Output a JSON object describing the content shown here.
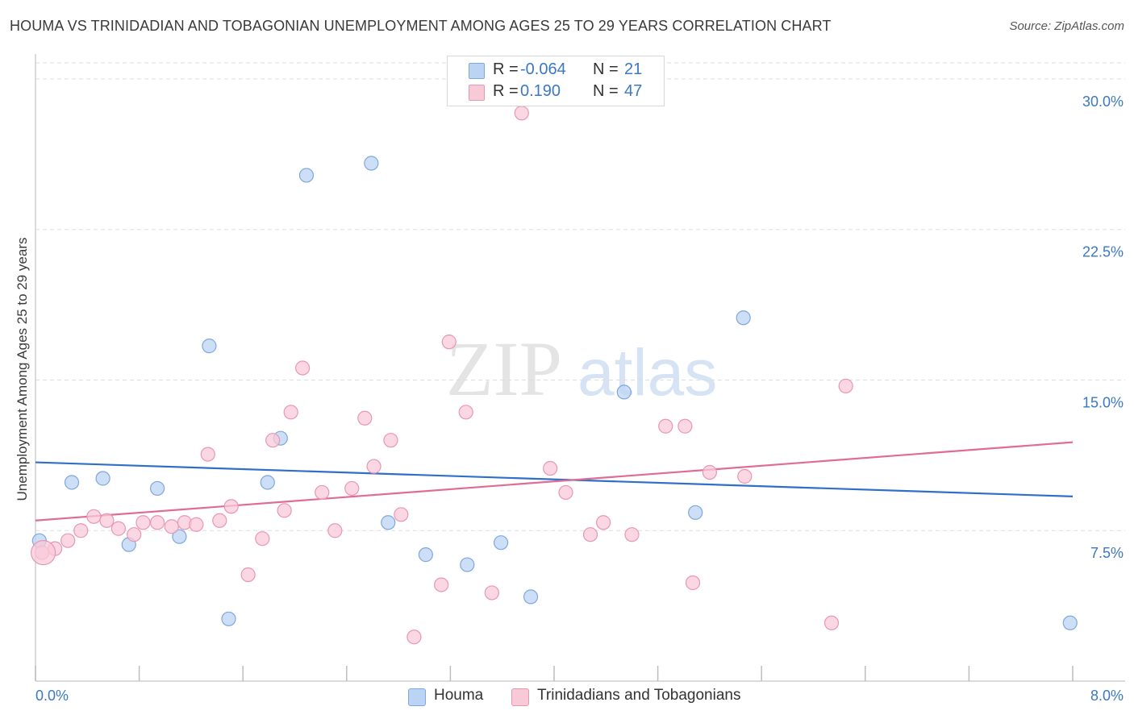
{
  "title": "HOUMA VS TRINIDADIAN AND TOBAGONIAN UNEMPLOYMENT AMONG AGES 25 TO 29 YEARS CORRELATION CHART",
  "source": "Source: ZipAtlas.com",
  "watermark": {
    "zip": "ZIP",
    "atlas": "atlas"
  },
  "legend": {
    "rows": [
      {
        "r_label": "R =",
        "r_value": "-0.064",
        "n_label": "N =",
        "n_value": "21"
      },
      {
        "r_label": "R =",
        "r_value": "0.190",
        "n_label": "N =",
        "n_value": "47"
      }
    ]
  },
  "bottom_legend": {
    "houma": "Houma",
    "trin": "Trinidadians and Tobagonians"
  },
  "colors": {
    "houma_fill": "#bcd4f4",
    "houma_stroke": "#7ea7dc",
    "houma_line": "#2f6fc8",
    "trin_fill": "#f8cad8",
    "trin_stroke": "#e897b2",
    "trin_line": "#e06c96",
    "tick_label": "#3b78c4",
    "grid": "#dddddd"
  },
  "chart_data": {
    "type": "scatter",
    "title": "HOUMA VS TRINIDADIAN AND TOBAGONIAN UNEMPLOYMENT AMONG AGES 25 TO 29 YEARS CORRELATION CHART",
    "xlabel": "",
    "ylabel": "Unemployment Among Ages 25 to 29 years",
    "xlim": [
      0,
      8
    ],
    "ylim": [
      0,
      30.8
    ],
    "x_tick_labels": [
      {
        "value": 0,
        "label": "0.0%"
      },
      {
        "value": 8,
        "label": "8.0%"
      }
    ],
    "y_ticks": [
      {
        "value": 7.5,
        "label": "7.5%"
      },
      {
        "value": 15,
        "label": "15.0%"
      },
      {
        "value": 22.5,
        "label": "22.5%"
      },
      {
        "value": 30,
        "label": "30.0%"
      }
    ],
    "x_minor_ticks": [
      0,
      0.8,
      1.6,
      2.4,
      3.2,
      4.0,
      4.8,
      5.6,
      6.4,
      7.2,
      8.0
    ],
    "grid": true,
    "legend_position": "top-center",
    "series": [
      {
        "name": "Houma",
        "color": "#bcd4f4",
        "points": [
          [
            0.03,
            7.0
          ],
          [
            0.28,
            9.9
          ],
          [
            0.52,
            10.1
          ],
          [
            0.72,
            6.8
          ],
          [
            0.94,
            9.6
          ],
          [
            1.11,
            7.2
          ],
          [
            1.34,
            16.7
          ],
          [
            1.49,
            3.1
          ],
          [
            1.79,
            9.9
          ],
          [
            1.89,
            12.1
          ],
          [
            2.09,
            25.2
          ],
          [
            2.59,
            25.8
          ],
          [
            2.72,
            7.9
          ],
          [
            3.01,
            6.3
          ],
          [
            3.33,
            5.8
          ],
          [
            3.59,
            6.9
          ],
          [
            3.82,
            4.2
          ],
          [
            4.54,
            14.4
          ],
          [
            5.09,
            8.4
          ],
          [
            5.46,
            18.1
          ],
          [
            7.98,
            2.9
          ]
        ],
        "trend": {
          "x": [
            0.0,
            8.0
          ],
          "y": [
            10.9,
            9.2
          ]
        }
      },
      {
        "name": "Trinidadians and Tobagonians",
        "color": "#f8cad8",
        "points": [
          [
            0.05,
            6.4
          ],
          [
            0.15,
            6.6
          ],
          [
            0.25,
            7.0
          ],
          [
            0.35,
            7.5
          ],
          [
            0.45,
            8.2
          ],
          [
            0.55,
            8.0
          ],
          [
            0.64,
            7.6
          ],
          [
            0.76,
            7.3
          ],
          [
            0.83,
            7.9
          ],
          [
            0.94,
            7.9
          ],
          [
            1.05,
            7.7
          ],
          [
            1.15,
            7.9
          ],
          [
            1.24,
            7.8
          ],
          [
            1.33,
            11.3
          ],
          [
            1.42,
            8.0
          ],
          [
            1.51,
            8.7
          ],
          [
            1.64,
            5.3
          ],
          [
            1.75,
            7.1
          ],
          [
            1.83,
            12.0
          ],
          [
            1.92,
            8.5
          ],
          [
            1.97,
            13.4
          ],
          [
            2.06,
            15.6
          ],
          [
            2.21,
            9.4
          ],
          [
            2.31,
            7.5
          ],
          [
            2.44,
            9.6
          ],
          [
            2.54,
            13.1
          ],
          [
            2.61,
            10.7
          ],
          [
            2.74,
            12.0
          ],
          [
            2.82,
            8.3
          ],
          [
            2.92,
            2.2
          ],
          [
            3.13,
            4.8
          ],
          [
            3.19,
            16.9
          ],
          [
            3.32,
            13.4
          ],
          [
            3.52,
            4.4
          ],
          [
            3.97,
            10.6
          ],
          [
            4.09,
            9.4
          ],
          [
            4.28,
            7.3
          ],
          [
            4.38,
            7.9
          ],
          [
            4.6,
            7.3
          ],
          [
            4.86,
            12.7
          ],
          [
            5.01,
            12.7
          ],
          [
            5.07,
            4.9
          ],
          [
            5.2,
            10.4
          ],
          [
            5.47,
            10.2
          ],
          [
            6.14,
            2.9
          ],
          [
            6.25,
            14.7
          ],
          [
            3.75,
            28.3
          ]
        ],
        "trend": {
          "x": [
            0.0,
            8.0
          ],
          "y": [
            8.0,
            11.9
          ]
        }
      }
    ]
  }
}
